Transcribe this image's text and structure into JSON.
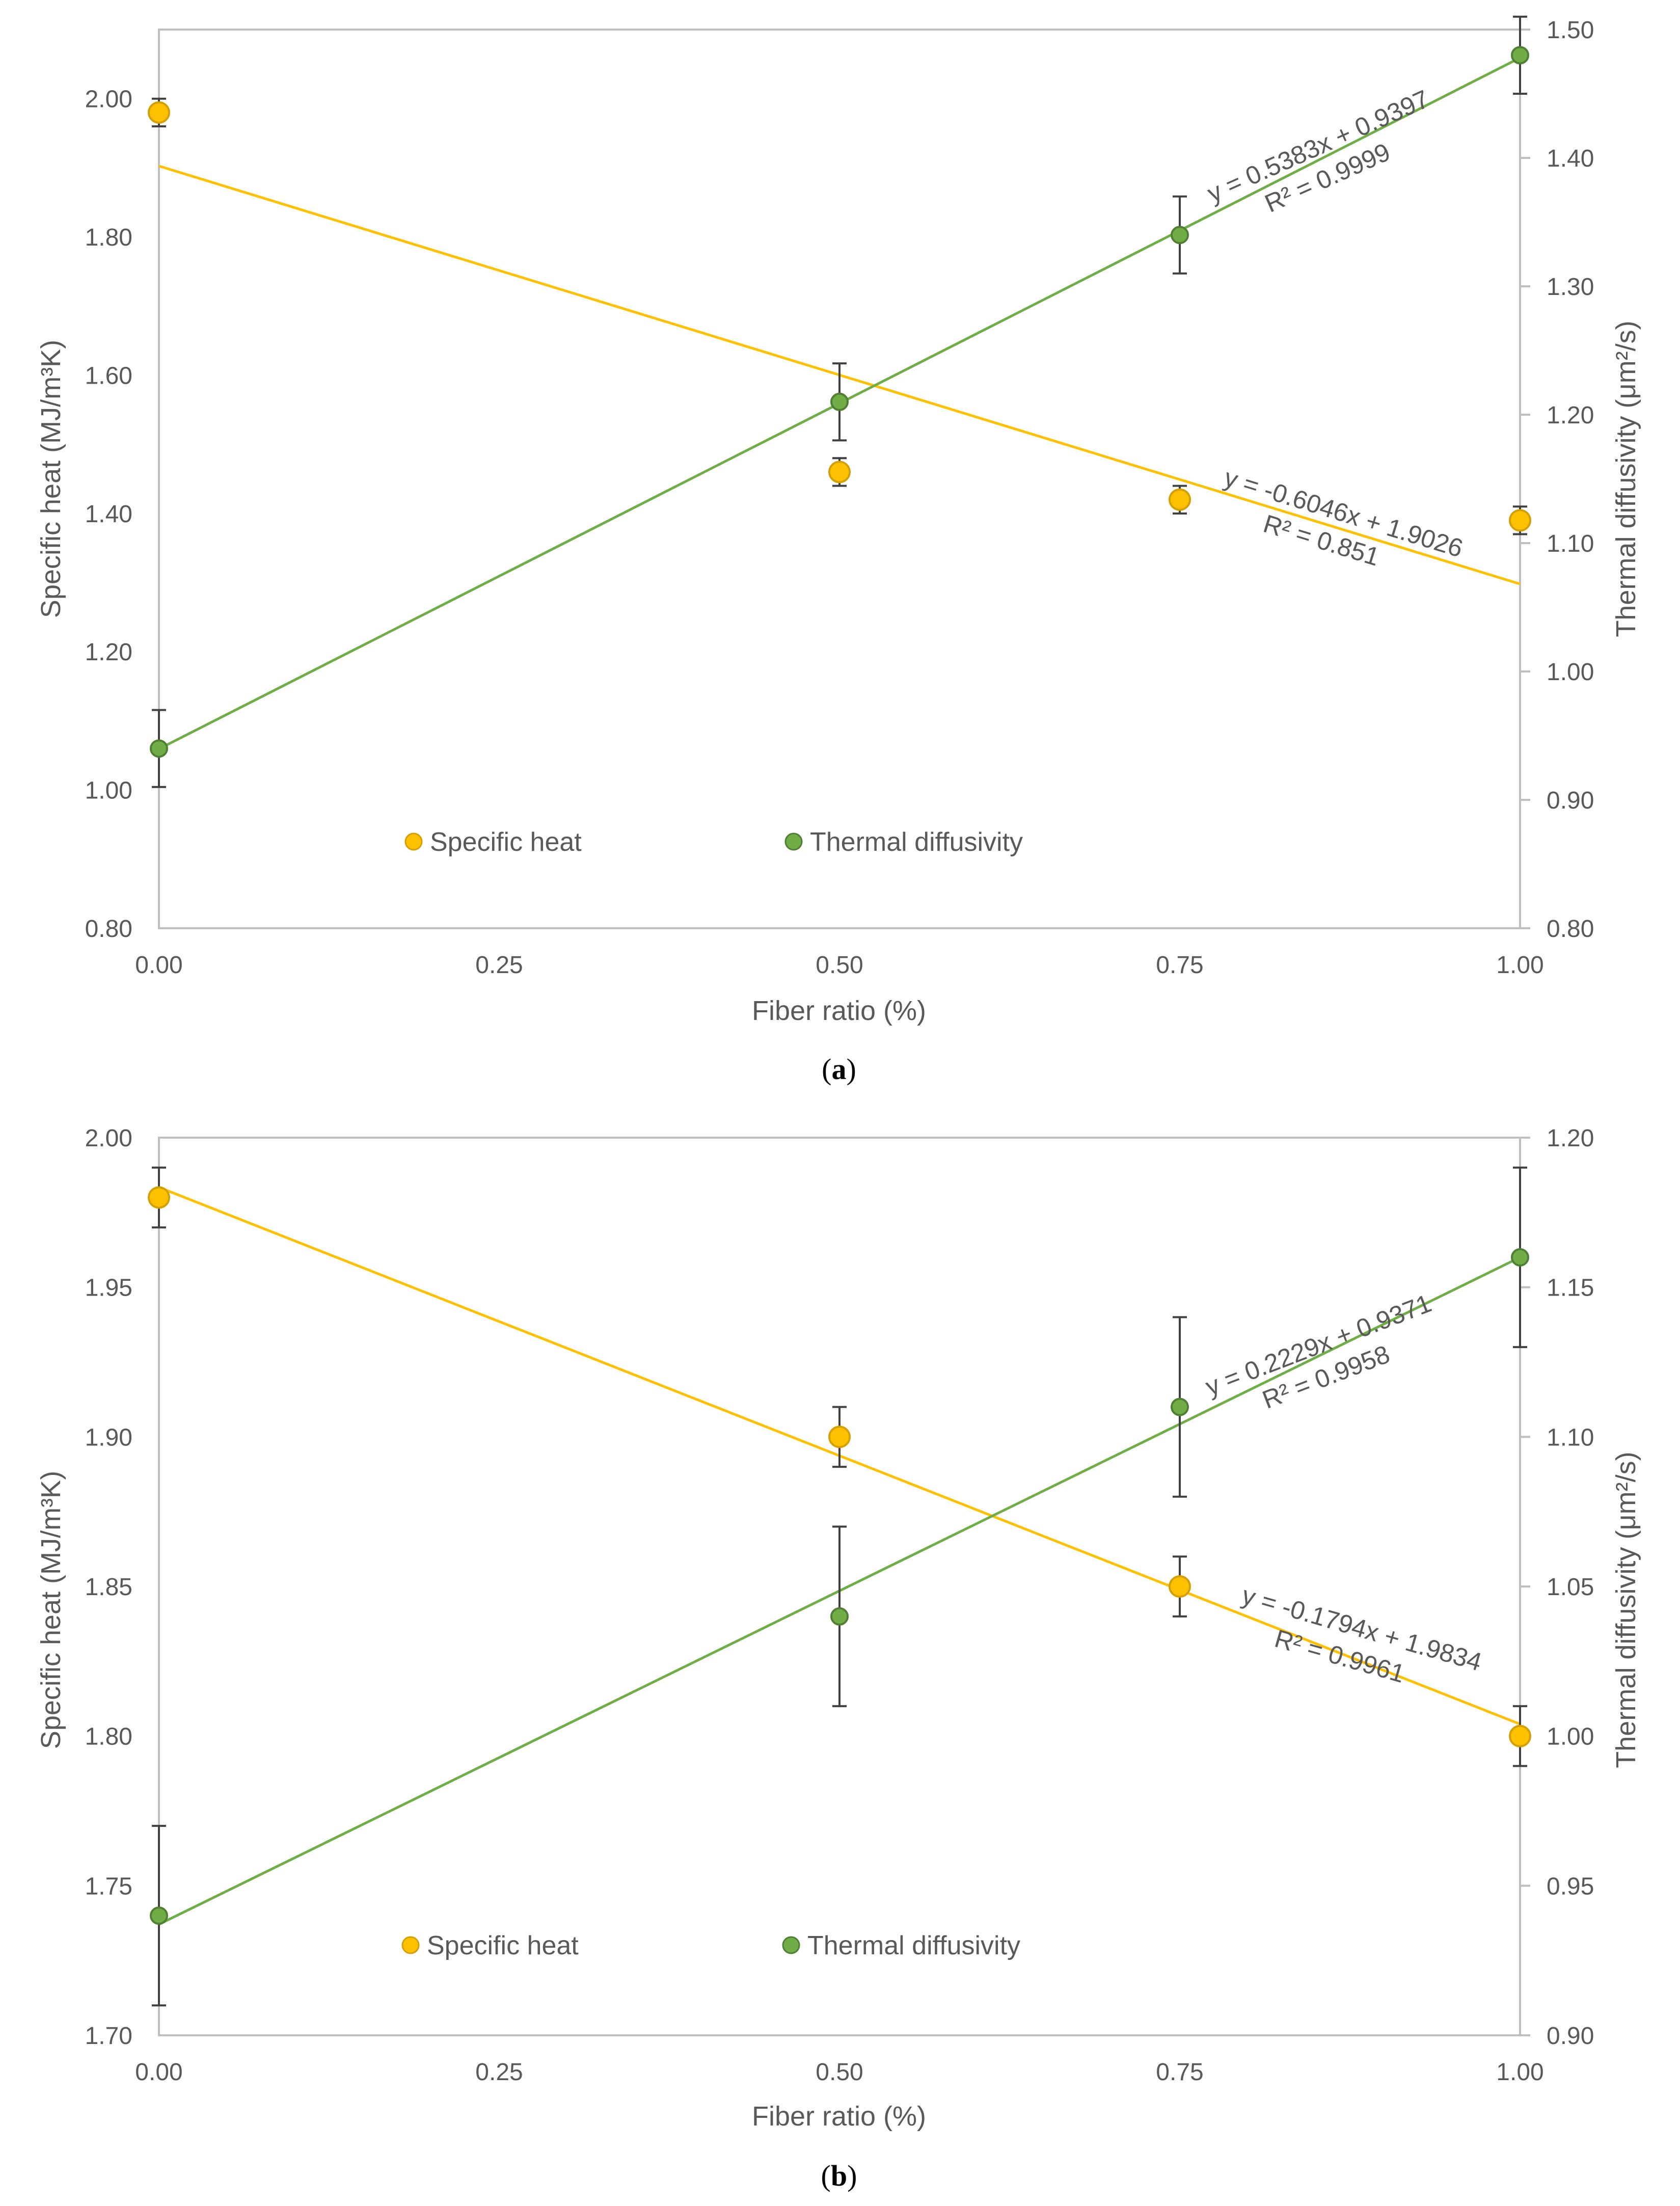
{
  "colors": {
    "specific_heat": "#FFC000",
    "specific_heat_edge": "#D4A000",
    "thermal_diffusivity": "#70AD47",
    "thermal_diffusivity_edge": "#507E32",
    "trend_specific_heat": "#FFC000",
    "trend_thermal_diffusivity": "#70AD47",
    "axis": "#BFBFBF",
    "error_bar": "#404040",
    "text": "#595959"
  },
  "chart_data": [
    {
      "type": "scatter",
      "caption_prefix": "(",
      "caption_letter": "a",
      "caption_suffix": ")",
      "xlabel": "Fiber ratio (%)",
      "ylabel_left": "Specific heat (MJ/m³K)",
      "ylabel_right": "Thermal diffusivity (μm²/s)",
      "xlim": [
        0,
        1
      ],
      "ylim_left": [
        0.8,
        2.1
      ],
      "ylim_right": [
        0.8,
        1.5
      ],
      "x_ticks": [
        "0.00",
        "0.25",
        "0.50",
        "0.75",
        "1.00"
      ],
      "y_left_ticks": [
        "0.80",
        "1.00",
        "1.20",
        "1.40",
        "1.60",
        "1.80",
        "2.00"
      ],
      "y_right_ticks": [
        "0.80",
        "0.90",
        "1.00",
        "1.10",
        "1.20",
        "1.30",
        "1.40",
        "1.50"
      ],
      "grid": false,
      "legend_placement": "bottom-center",
      "series": [
        {
          "name": "Specific heat",
          "axis": "left",
          "x": [
            0,
            0.5,
            0.75,
            1.0
          ],
          "y": [
            1.98,
            1.46,
            1.42,
            1.39
          ],
          "err": [
            0.02,
            0.02,
            0.02,
            0.02
          ],
          "trend": {
            "slope": -0.6046,
            "intercept": 1.9026,
            "equation": "y = -0.6046x + 1.9026",
            "r2": "R² = 0.851"
          }
        },
        {
          "name": "Thermal diffusivity",
          "axis": "right",
          "x": [
            0,
            0.5,
            0.75,
            1.0
          ],
          "y": [
            0.94,
            1.21,
            1.34,
            1.48
          ],
          "err": [
            0.03,
            0.03,
            0.03,
            0.03
          ],
          "trend": {
            "slope": 0.5383,
            "intercept": 0.9397,
            "equation": "y = 0.5383x + 0.9397",
            "r2": "R² = 0.9999"
          }
        }
      ]
    },
    {
      "type": "scatter",
      "caption_prefix": "(",
      "caption_letter": "b",
      "caption_suffix": ")",
      "xlabel": "Fiber ratio (%)",
      "ylabel_left": "Specific heat (MJ/m³K)",
      "ylabel_right": "Thermal diffusivity (μm²/s)",
      "xlim": [
        0,
        1
      ],
      "ylim_left": [
        1.7,
        2.0
      ],
      "ylim_right": [
        0.9,
        1.2
      ],
      "x_ticks": [
        "0.00",
        "0.25",
        "0.50",
        "0.75",
        "1.00"
      ],
      "y_left_ticks": [
        "1.70",
        "1.75",
        "1.80",
        "1.85",
        "1.90",
        "1.95",
        "2.00"
      ],
      "y_right_ticks": [
        "0.90",
        "0.95",
        "1.00",
        "1.05",
        "1.10",
        "1.15",
        "1.20"
      ],
      "grid": false,
      "legend_placement": "bottom-center",
      "series": [
        {
          "name": "Specific heat",
          "axis": "left",
          "x": [
            0,
            0.5,
            0.75,
            1.0
          ],
          "y": [
            1.98,
            1.9,
            1.85,
            1.8
          ],
          "err": [
            0.01,
            0.01,
            0.01,
            0.01
          ],
          "trend": {
            "slope": -0.1794,
            "intercept": 1.9834,
            "equation": "y = -0.1794x + 1.9834",
            "r2": "R² = 0.9961"
          }
        },
        {
          "name": "Thermal diffusivity",
          "axis": "right",
          "x": [
            0,
            0.5,
            0.75,
            1.0
          ],
          "y": [
            0.94,
            1.04,
            1.11,
            1.16
          ],
          "err": [
            0.03,
            0.03,
            0.03,
            0.03
          ],
          "trend": {
            "slope": 0.2229,
            "intercept": 0.9371,
            "equation": "y = 0.2229x + 0.9371",
            "r2": "R² = 0.9958"
          }
        }
      ]
    }
  ]
}
